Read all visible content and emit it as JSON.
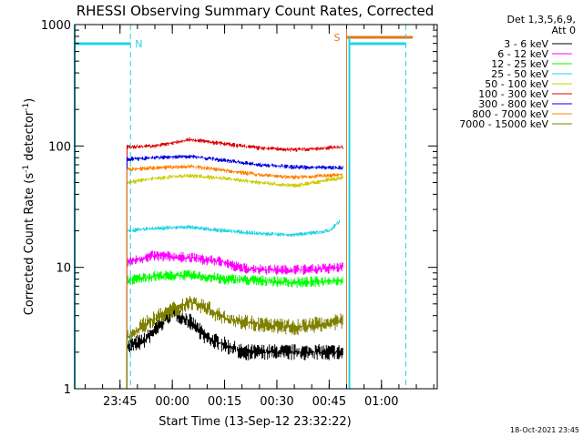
{
  "chart_data": {
    "type": "line",
    "title": "RHESSI Observing Summary Count Rates, Corrected",
    "xlabel": "Start Time (13-Sep-12 23:32:22)",
    "ylabel": "Corrected Count Rate (s⁻¹ detector⁻¹)",
    "yscale": "log",
    "ylim": [
      1,
      1000
    ],
    "xlim": [
      "23:32",
      "01:16"
    ],
    "x_ticks": [
      "23:45",
      "00:00",
      "00:15",
      "00:30",
      "00:45",
      "01:00"
    ],
    "y_ticks": [
      "1",
      "10",
      "100",
      "1000"
    ],
    "legend_header": [
      "Det 1,3,5,6,9,",
      "Att 0"
    ],
    "legend_position": "right",
    "flag_markers": [
      {
        "label": "N",
        "color": "#22d3e6"
      },
      {
        "label": "S",
        "color": "#e07a1a"
      }
    ],
    "series": [
      {
        "name": "3 - 6 keV",
        "color": "#000000",
        "points": [
          [
            "23:47",
            2.2
          ],
          [
            "23:52",
            2.5
          ],
          [
            "23:56",
            3.2
          ],
          [
            "00:00",
            4.3
          ],
          [
            "00:05",
            3.6
          ],
          [
            "00:10",
            2.6
          ],
          [
            "00:15",
            2.3
          ],
          [
            "00:20",
            2.0
          ],
          [
            "00:30",
            2.0
          ],
          [
            "00:40",
            2.0
          ],
          [
            "00:49",
            2.0
          ]
        ]
      },
      {
        "name": "6 - 12 keV",
        "color": "#ff00ff",
        "points": [
          [
            "23:47",
            11.0
          ],
          [
            "23:55",
            12.5
          ],
          [
            "00:05",
            12.0
          ],
          [
            "00:15",
            11.0
          ],
          [
            "00:20",
            9.8
          ],
          [
            "00:30",
            9.5
          ],
          [
            "00:40",
            9.6
          ],
          [
            "00:49",
            10.0
          ]
        ]
      },
      {
        "name": "12 - 25 keV",
        "color": "#00ff00",
        "points": [
          [
            "23:47",
            7.8
          ],
          [
            "23:55",
            8.5
          ],
          [
            "00:05",
            8.6
          ],
          [
            "00:15",
            8.0
          ],
          [
            "00:25",
            7.8
          ],
          [
            "00:35",
            7.5
          ],
          [
            "00:49",
            7.8
          ]
        ]
      },
      {
        "name": "25 - 50 keV",
        "color": "#22d3e6",
        "points": [
          [
            "23:47",
            20.0
          ],
          [
            "23:55",
            21.0
          ],
          [
            "00:05",
            21.5
          ],
          [
            "00:15",
            20.0
          ],
          [
            "00:25",
            19.0
          ],
          [
            "00:35",
            18.5
          ],
          [
            "00:45",
            20.0
          ],
          [
            "00:48",
            24.0
          ]
        ]
      },
      {
        "name": "50 - 100 keV",
        "color": "#cccc00",
        "points": [
          [
            "23:47",
            50.0
          ],
          [
            "23:55",
            54.0
          ],
          [
            "00:05",
            57.0
          ],
          [
            "00:15",
            54.0
          ],
          [
            "00:25",
            50.0
          ],
          [
            "00:35",
            47.0
          ],
          [
            "00:49",
            55.0
          ]
        ]
      },
      {
        "name": "100 - 300 keV",
        "color": "#e00000",
        "points": [
          [
            "23:47",
            98.0
          ],
          [
            "23:55",
            100.0
          ],
          [
            "00:05",
            113.0
          ],
          [
            "00:15",
            104.0
          ],
          [
            "00:25",
            96.0
          ],
          [
            "00:35",
            93.0
          ],
          [
            "00:49",
            98.0
          ]
        ]
      },
      {
        "name": "300 - 800 keV",
        "color": "#0000e0",
        "points": [
          [
            "23:47",
            78.0
          ],
          [
            "23:55",
            80.0
          ],
          [
            "00:05",
            82.0
          ],
          [
            "00:15",
            76.0
          ],
          [
            "00:25",
            70.0
          ],
          [
            "00:35",
            67.0
          ],
          [
            "00:49",
            66.0
          ]
        ]
      },
      {
        "name": "800 - 7000 keV",
        "color": "#ff8000",
        "points": [
          [
            "23:47",
            64.0
          ],
          [
            "23:55",
            66.0
          ],
          [
            "00:05",
            68.0
          ],
          [
            "00:15",
            63.0
          ],
          [
            "00:25",
            58.0
          ],
          [
            "00:35",
            55.0
          ],
          [
            "00:49",
            58.0
          ]
        ]
      },
      {
        "name": "7000 - 15000 keV",
        "color": "#808000",
        "points": [
          [
            "23:47",
            2.6
          ],
          [
            "23:52",
            3.4
          ],
          [
            "23:58",
            4.2
          ],
          [
            "00:05",
            5.2
          ],
          [
            "00:10",
            4.6
          ],
          [
            "00:15",
            3.8
          ],
          [
            "00:25",
            3.4
          ],
          [
            "00:35",
            3.2
          ],
          [
            "00:49",
            3.6
          ]
        ]
      }
    ]
  },
  "footer": {
    "timestamp": "18-Oct-2021 23:45"
  }
}
